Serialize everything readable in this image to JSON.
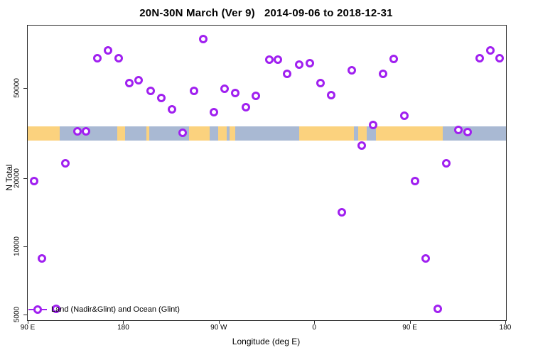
{
  "title": "20N-30N March (Ver 9)   2014-09-06 to 2018-12-31",
  "x_axis": {
    "label": "Longitude (deg E)",
    "ticks": [
      {
        "lon": 90,
        "label": "90 E"
      },
      {
        "lon": 180,
        "label": "180"
      },
      {
        "lon": 270,
        "label": "90 W"
      },
      {
        "lon": 360,
        "label": "0"
      },
      {
        "lon": 450,
        "label": "90 E"
      },
      {
        "lon": 540,
        "label": "180"
      }
    ]
  },
  "y_axis": {
    "label": "N Total",
    "ticks": [
      {
        "value": 5000,
        "label": "5000"
      },
      {
        "value": 10000,
        "label": "10000"
      },
      {
        "value": 20000,
        "label": "20000"
      },
      {
        "value": 50000,
        "label": "50000"
      }
    ]
  },
  "legend": {
    "label": "Land (Nadir&Glint) and Ocean (Glint)"
  },
  "colors": {
    "marker": "#A020F0",
    "land": "#FBD27E",
    "ocean": "#A9B9D3"
  },
  "chart_data": {
    "type": "scatter",
    "title": "20N-30N March (Ver 9)   2014-09-06 to 2018-12-31",
    "xlabel": "Longitude (deg E)",
    "ylabel": "N Total",
    "x_domain": [
      89.3,
      540
    ],
    "y_domain_log": [
      4753,
      95000
    ],
    "y_scale": "log10",
    "axis_note": "x axis runs 450 deg eastward from 90E; 90E-180 span repeated at both ends",
    "series_name": "Land (Nadir&Glint) and Ocean (Glint)",
    "points_lon_n": [
      [
        155,
        68000
      ],
      [
        165,
        74000
      ],
      [
        175,
        68000
      ],
      [
        255,
        83000
      ],
      [
        185,
        53000
      ],
      [
        194,
        54500
      ],
      [
        205,
        49000
      ],
      [
        215,
        45500
      ],
      [
        225,
        40500
      ],
      [
        246,
        49000
      ],
      [
        265,
        39500
      ],
      [
        275,
        50000
      ],
      [
        285,
        48000
      ],
      [
        295,
        41500
      ],
      [
        304,
        46500
      ],
      [
        317,
        67000
      ],
      [
        325,
        67000
      ],
      [
        334,
        58000
      ],
      [
        345,
        64000
      ],
      [
        355,
        65000
      ],
      [
        365,
        53000
      ],
      [
        375,
        47000
      ],
      [
        385,
        14200
      ],
      [
        395,
        60500
      ],
      [
        404,
        28000
      ],
      [
        415,
        34500
      ],
      [
        424,
        58000
      ],
      [
        434,
        67500
      ],
      [
        444,
        38000
      ],
      [
        454,
        19500
      ],
      [
        464,
        8900
      ],
      [
        476,
        5350
      ],
      [
        484,
        23500
      ],
      [
        495,
        33000
      ],
      [
        504,
        32200
      ],
      [
        515,
        68000
      ],
      [
        525,
        74000
      ],
      [
        534,
        68000
      ],
      [
        136,
        32500
      ],
      [
        144,
        32500
      ],
      [
        235,
        32000
      ],
      [
        125,
        23500
      ],
      [
        95,
        19500
      ],
      [
        103,
        8900
      ],
      [
        116,
        5330
      ]
    ],
    "map_band": {
      "n_range": [
        29500,
        34000
      ],
      "land_segments_lon": [
        [
          89.3,
          119.5
        ],
        [
          174,
          181
        ],
        [
          201,
          204
        ],
        [
          241,
          261
        ],
        [
          269,
          277
        ],
        [
          279.5,
          285
        ],
        [
          345,
          397
        ],
        [
          401,
          409
        ],
        [
          417.5,
          480.5
        ]
      ]
    }
  }
}
